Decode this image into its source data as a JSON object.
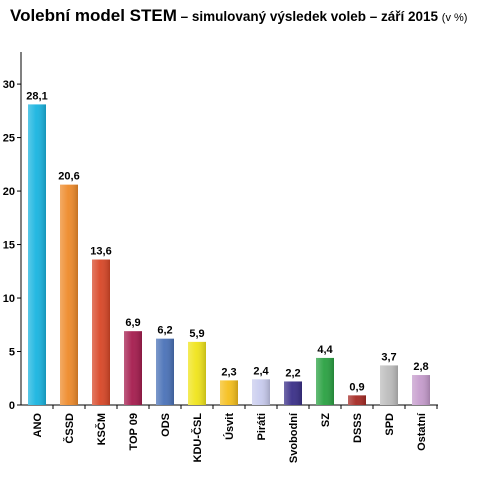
{
  "title": {
    "main": "Volební model STEM",
    "sub": " – simulovaný výsledek voleb – září 2015 ",
    "unit": "(v %)"
  },
  "chart_data": {
    "type": "bar",
    "categories": [
      "ANO",
      "ČSSD",
      "KSČM",
      "TOP 09",
      "ODS",
      "KDU-ČSL",
      "Úsvit",
      "Piráti",
      "Svobodní",
      "SZ",
      "DSSS",
      "SPD",
      "Ostatní"
    ],
    "values": [
      28.1,
      20.6,
      13.6,
      6.9,
      6.2,
      5.9,
      2.3,
      2.4,
      2.2,
      4.4,
      0.9,
      3.7,
      2.8
    ],
    "value_labels": [
      "28,1",
      "20,6",
      "13,6",
      "6,9",
      "6,2",
      "5,9",
      "2,3",
      "2,4",
      "2,2",
      "4,4",
      "0,9",
      "3,7",
      "2,8"
    ],
    "colors": [
      "#19b4e0",
      "#ee8a2a",
      "#d84727",
      "#a51c4e",
      "#4a72b8",
      "#f0e41a",
      "#f5bf1c",
      "#c8cbee",
      "#3a2f88",
      "#2aa142",
      "#a52a24",
      "#bcbcbc",
      "#c59bcc"
    ],
    "yticks": [
      "0",
      "5",
      "10",
      "15",
      "20",
      "25",
      "30"
    ],
    "ylim": [
      0,
      33
    ],
    "grid": false
  }
}
